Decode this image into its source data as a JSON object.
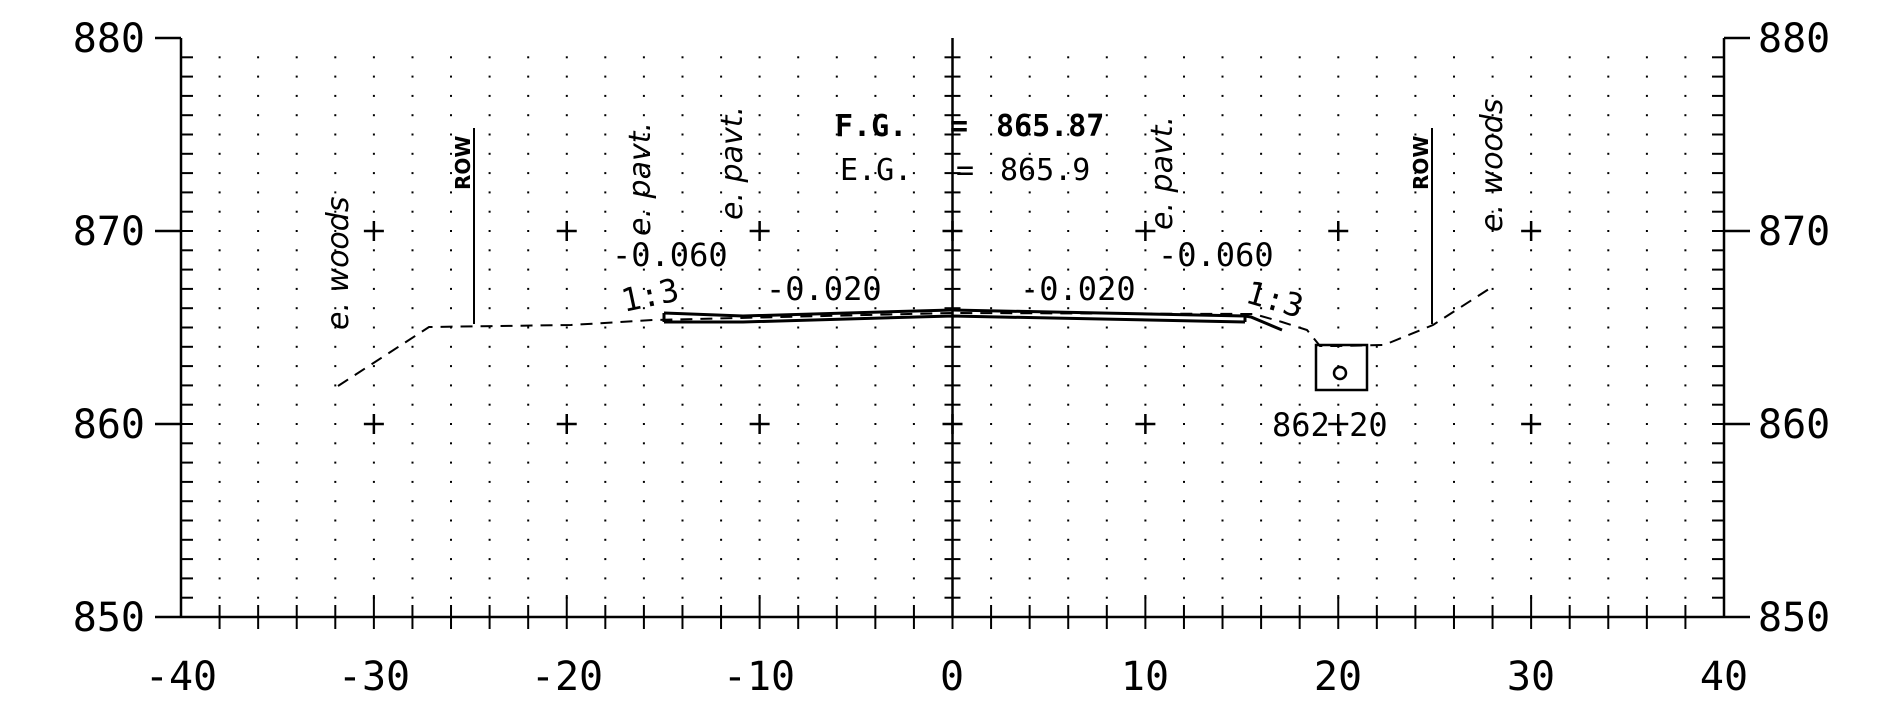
{
  "x_ticks": [
    "-40",
    "-30",
    "-20",
    "-10",
    "0",
    "10",
    "20",
    "30",
    "40"
  ],
  "y_ticks": [
    "850",
    "860",
    "870",
    "880"
  ],
  "annotations": {
    "left_woods": "e. woods",
    "right_woods": "e. woods",
    "left_row": "ROW",
    "right_row": "ROW",
    "left_pavt_outer": "e. pavt.",
    "left_pavt_inner": "e. pavt.",
    "right_pavt": "e. pavt.",
    "fg_label": "F.G.",
    "fg_eq": "=",
    "fg_value": "865.87",
    "eg_label": "E.G.",
    "eg_eq": "=",
    "eg_value": "865.9",
    "left_shoulder_slope": "-0.060",
    "left_lane_slope": "-0.020",
    "right_lane_slope": "-0.020",
    "right_shoulder_slope": "-0.060",
    "left_side_slope": "1:3",
    "right_side_slope": "1:3",
    "pipe_invert": "862.20"
  }
}
